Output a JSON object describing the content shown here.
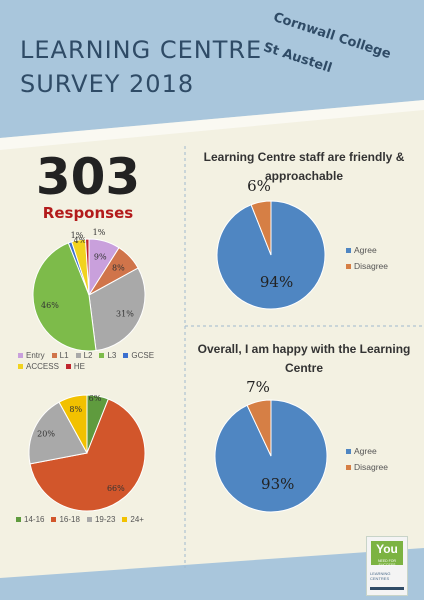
{
  "header": {
    "title_line1": "LEARNING CENTRE",
    "title_line2": "SURVEY 2018",
    "college_line1": "Cornwall College",
    "college_line2": "St Austell"
  },
  "summary": {
    "count": "303",
    "label": "Responses"
  },
  "logo": {
    "badge_text": "You",
    "badge_sub": "NEED FOR SUCCESS",
    "caption": "LEARNING CENTRES"
  },
  "colors": {
    "entry": "#c9a0dc",
    "l1": "#d0744a",
    "l2": "#a9a9a9",
    "l3": "#7dbb4a",
    "gcse": "#3b6fcf",
    "access": "#f1d320",
    "he": "#c0262e",
    "age_14_16": "#5f9b3e",
    "age_16_18": "#d2562b",
    "age_19_23": "#a9a9a9",
    "age_24_plus": "#f2c100",
    "agree": "#4f86c2",
    "disagree": "#d67f45"
  },
  "chart_data": [
    {
      "type": "pie",
      "name": "level",
      "categories": [
        "Entry",
        "L1",
        "L2",
        "L3",
        "GCSE",
        "ACCESS",
        "HE"
      ],
      "values": [
        9,
        8,
        31,
        46,
        1,
        4,
        1
      ],
      "labels": [
        "9%",
        "8%",
        "31%",
        "46%",
        "1%",
        "4%",
        "1%"
      ],
      "legend": "bottom"
    },
    {
      "type": "pie",
      "name": "age",
      "categories": [
        "14-16",
        "16-18",
        "19-23",
        "24+"
      ],
      "values": [
        6,
        66,
        20,
        8
      ],
      "labels": [
        "6%",
        "66%",
        "20%",
        "8%"
      ],
      "legend": "bottom"
    },
    {
      "type": "pie",
      "name": "friendly",
      "title": "Learning Centre staff are friendly & approachable",
      "categories": [
        "Agree",
        "Disagree"
      ],
      "values": [
        94,
        6
      ],
      "labels": [
        "94%",
        "6%"
      ],
      "legend": "right"
    },
    {
      "type": "pie",
      "name": "happy",
      "title": "Overall, I am happy with the Learning Centre",
      "categories": [
        "Agree",
        "Disagree"
      ],
      "values": [
        93,
        7
      ],
      "labels": [
        "93%",
        "7%"
      ],
      "legend": "right"
    }
  ]
}
